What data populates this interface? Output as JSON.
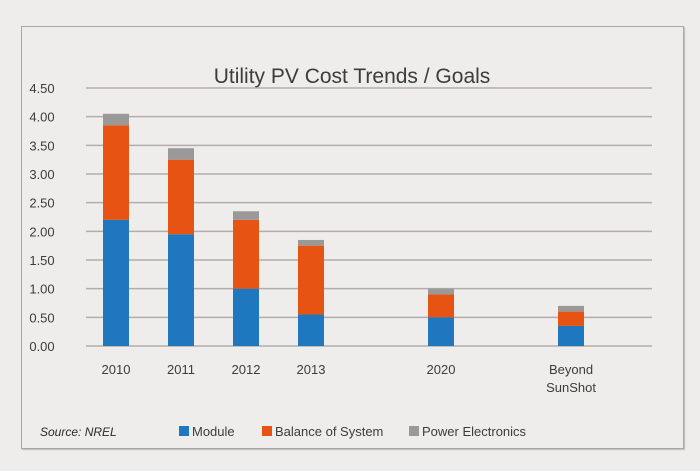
{
  "chart_data": {
    "type": "bar",
    "stacked": true,
    "title": "Utility PV Cost Trends / Goals",
    "xlabel": "",
    "ylabel": "",
    "ylim": [
      0,
      4.5
    ],
    "yticks": [
      "0.00",
      "0.50",
      "1.00",
      "1.50",
      "2.00",
      "2.50",
      "3.00",
      "3.50",
      "4.00",
      "4.50"
    ],
    "ytick_values": [
      0,
      0.5,
      1.0,
      1.5,
      2.0,
      2.5,
      3.0,
      3.5,
      4.0,
      4.5
    ],
    "grid": true,
    "categories": [
      "2010",
      "2011",
      "2012",
      "2013",
      "2020",
      "Beyond SunShot"
    ],
    "category_lines": [
      [
        "2010"
      ],
      [
        "2011"
      ],
      [
        "2012"
      ],
      [
        "2013"
      ],
      [
        "2020"
      ],
      [
        "Beyond",
        "SunShot"
      ]
    ],
    "category_slots": [
      0,
      1,
      2,
      3,
      5,
      7
    ],
    "series": [
      {
        "name": "Module",
        "color": "#1f77c0",
        "values": [
          2.2,
          1.95,
          1.0,
          0.55,
          0.5,
          0.35
        ]
      },
      {
        "name": "Balance of System",
        "color": "#e65313",
        "values": [
          1.65,
          1.3,
          1.2,
          1.2,
          0.4,
          0.25
        ]
      },
      {
        "name": "Power Electronics",
        "color": "#9b9898",
        "values": [
          0.2,
          0.2,
          0.15,
          0.1,
          0.1,
          0.1
        ]
      }
    ],
    "legend_position": "bottom",
    "source": "Source: NREL"
  }
}
